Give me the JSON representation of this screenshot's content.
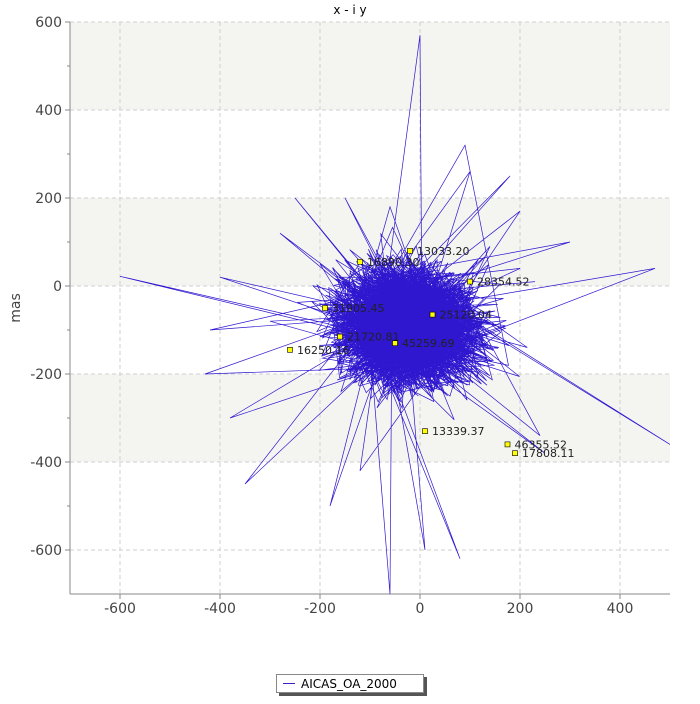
{
  "colors": {
    "series": "#2e17cf",
    "background": "#ffffff",
    "band": "#f4f4f1",
    "grid": "#cfcfcf",
    "marker": "#ffff00"
  },
  "chart_data": {
    "type": "line",
    "title": "x - i y",
    "xlabel": "",
    "ylabel": "mas",
    "xlim": [
      -700,
      500
    ],
    "ylim": [
      -700,
      600
    ],
    "xticks": [
      -600,
      -400,
      -200,
      0,
      200,
      400
    ],
    "yticks": [
      600,
      400,
      200,
      0,
      -200,
      -400,
      -600
    ],
    "grid": true,
    "legend_position": "bottom-center",
    "series": [
      {
        "name": "AICAS_OA_2000",
        "color": "#2e17cf",
        "description_points_sample": [
          [
            -600,
            22
          ],
          [
            -150,
            -40
          ],
          [
            -300,
            -80
          ],
          [
            -400,
            20
          ],
          [
            -420,
            -100
          ],
          [
            -200,
            50
          ],
          [
            -100,
            -200
          ],
          [
            60,
            -250
          ],
          [
            200,
            40
          ],
          [
            240,
            -340
          ],
          [
            470,
            40
          ],
          [
            500,
            -360
          ],
          [
            300,
            100
          ],
          [
            140,
            90
          ],
          [
            100,
            260
          ],
          [
            -280,
            120
          ],
          [
            -250,
            200
          ],
          [
            -120,
            -420
          ],
          [
            -60,
            -700
          ],
          [
            80,
            -620
          ],
          [
            250,
            -380
          ],
          [
            200,
            170
          ],
          [
            40,
            -60
          ],
          [
            -30,
            -10
          ],
          [
            10,
            -600
          ],
          [
            -180,
            -500
          ],
          [
            -350,
            -450
          ],
          [
            -380,
            -300
          ],
          [
            -430,
            -200
          ],
          [
            -150,
            200
          ],
          [
            -60,
            180
          ],
          [
            0,
            570
          ],
          [
            90,
            320
          ],
          [
            180,
            250
          ],
          [
            230,
            10
          ]
        ],
        "labeled_points": [
          {
            "x": -20,
            "y": 80,
            "label": "13033.20"
          },
          {
            "x": -120,
            "y": 55,
            "label": "16890.30"
          },
          {
            "x": 100,
            "y": 10,
            "label": "28354.52"
          },
          {
            "x": -190,
            "y": -50,
            "label": "31905.45"
          },
          {
            "x": 25,
            "y": -65,
            "label": "25120.04"
          },
          {
            "x": -160,
            "y": -115,
            "label": "21720.81"
          },
          {
            "x": -50,
            "y": -130,
            "label": "45259.69"
          },
          {
            "x": -260,
            "y": -145,
            "label": "16250.16"
          },
          {
            "x": 10,
            "y": -330,
            "label": "13339.37"
          },
          {
            "x": 175,
            "y": -360,
            "label": "46355.52"
          },
          {
            "x": 190,
            "y": -380,
            "label": "17808.11"
          }
        ]
      }
    ]
  }
}
